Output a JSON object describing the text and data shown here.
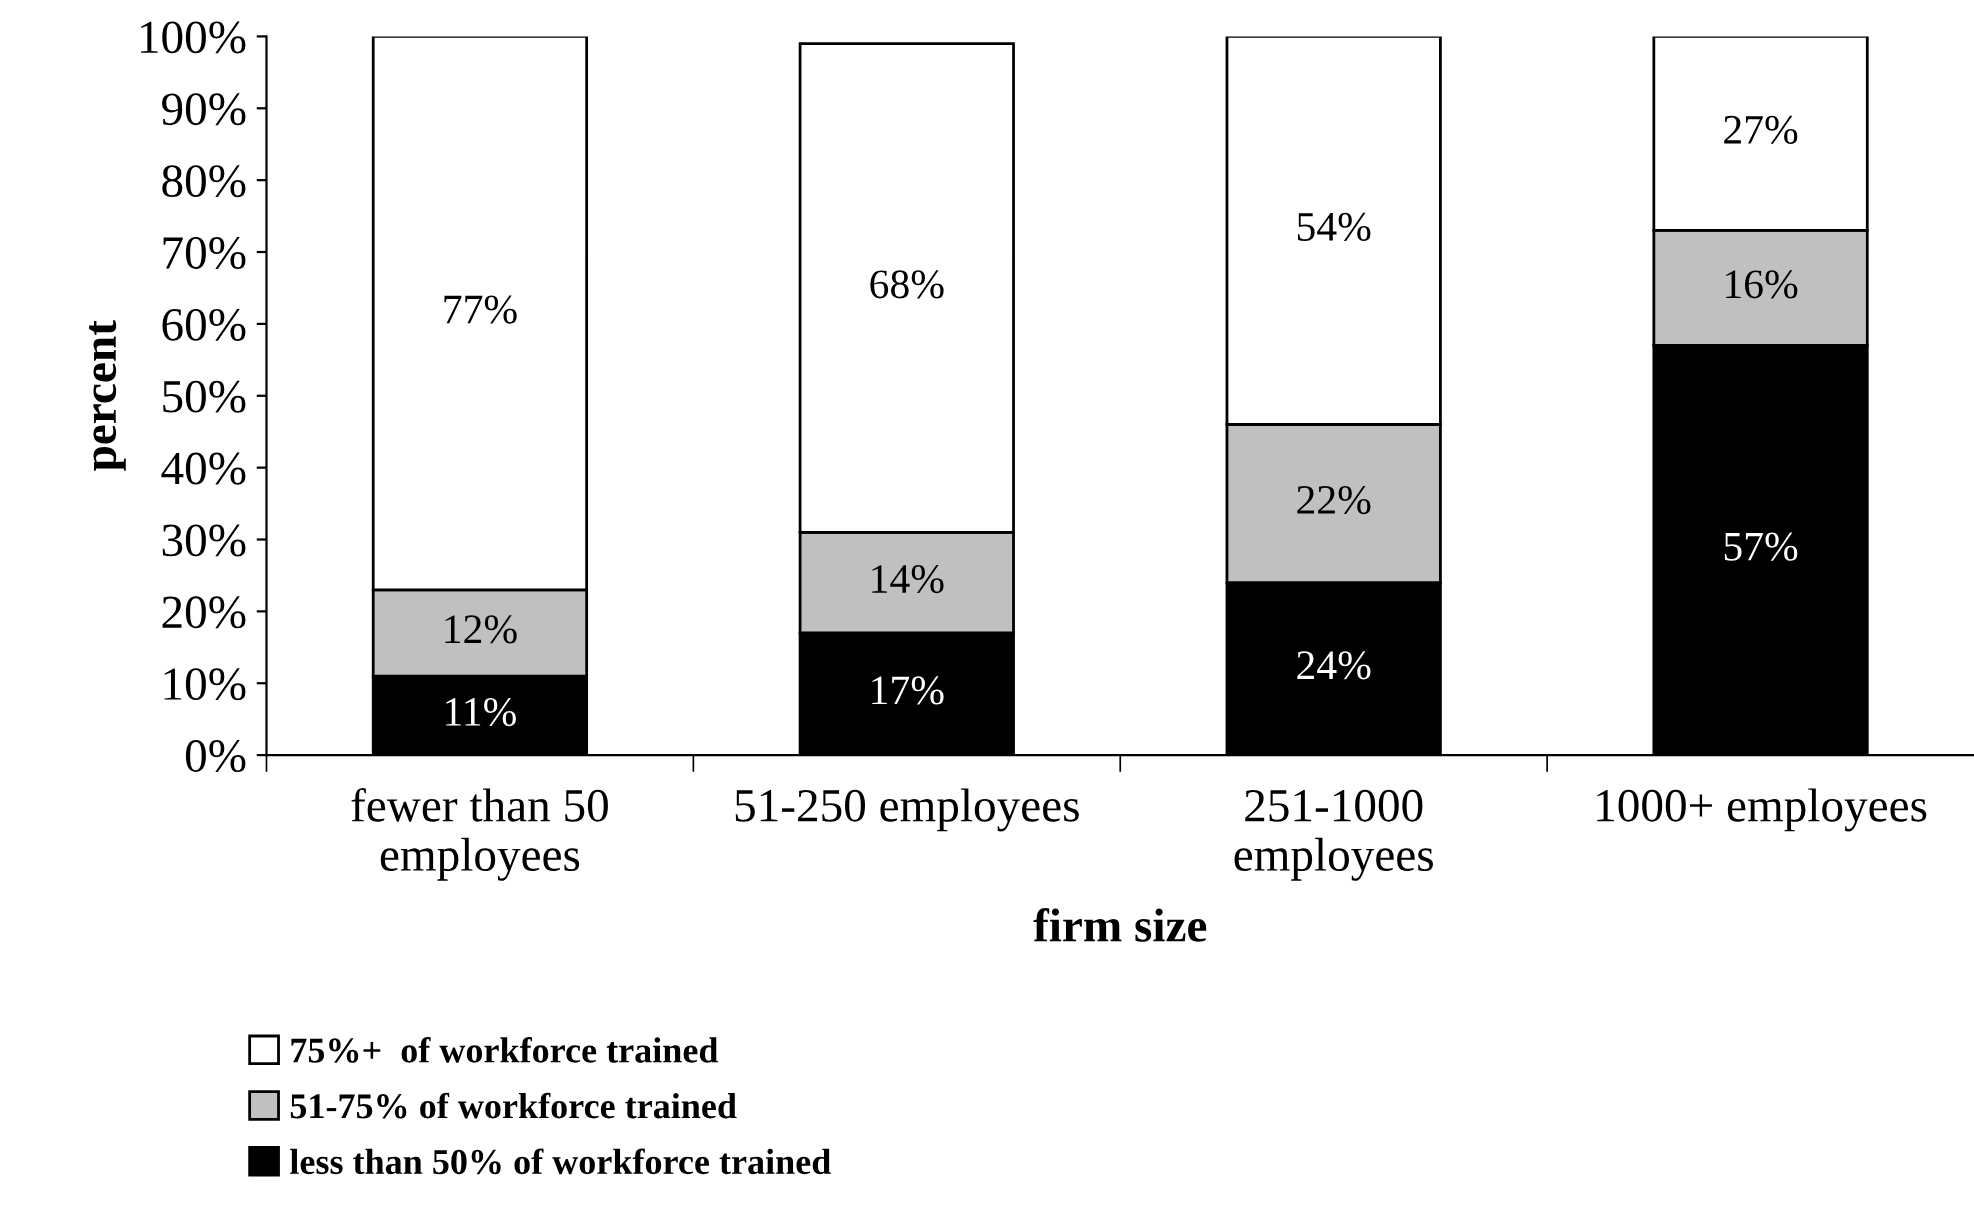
{
  "chart_data": {
    "type": "bar",
    "stacked": true,
    "xlabel": "firm size",
    "ylabel": "percent",
    "categories": [
      "fewer than 50\nemployees",
      "51-250 employees",
      "251-1000\nemployees",
      "1000+ employees"
    ],
    "series": [
      {
        "name": "less than 50% of workforce trained",
        "color": "#000000",
        "values": [
          11,
          17,
          24,
          57
        ],
        "value_labels": [
          "11%",
          "17%",
          "24%",
          "57%"
        ]
      },
      {
        "name": "51-75% of workforce trained",
        "color": "#c0c0c0",
        "values": [
          12,
          14,
          22,
          16
        ],
        "value_labels": [
          "12%",
          "14%",
          "22%",
          "16%"
        ]
      },
      {
        "name": "75%+  of workforce trained",
        "color": "#ffffff",
        "values": [
          77,
          68,
          54,
          27
        ],
        "value_labels": [
          "77%",
          "68%",
          "54%",
          "27%"
        ]
      }
    ],
    "ylim": [
      0,
      100
    ],
    "yticks": [
      {
        "value": 0,
        "label": "0%"
      },
      {
        "value": 10,
        "label": "10%"
      },
      {
        "value": 20,
        "label": "20%"
      },
      {
        "value": 30,
        "label": "30%"
      },
      {
        "value": 40,
        "label": "40%"
      },
      {
        "value": 50,
        "label": "50%"
      },
      {
        "value": 60,
        "label": "60%"
      },
      {
        "value": 70,
        "label": "70%"
      },
      {
        "value": 80,
        "label": "80%"
      },
      {
        "value": 90,
        "label": "90%"
      },
      {
        "value": 100,
        "label": "100%"
      }
    ],
    "grid": false,
    "legend": "bottom left"
  }
}
